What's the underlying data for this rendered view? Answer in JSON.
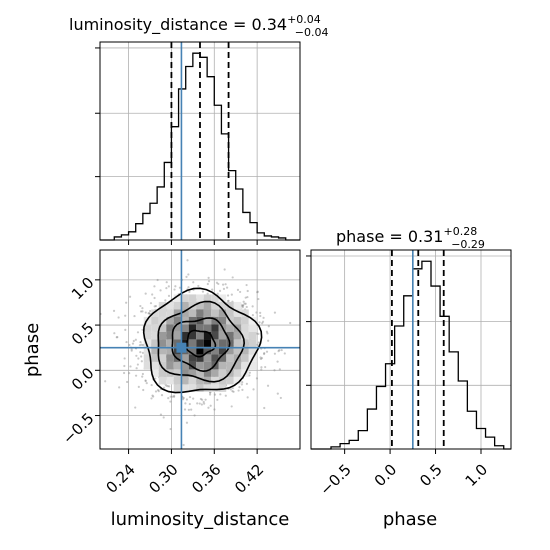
{
  "chart_data": {
    "type": "corner",
    "truth_color": "#4682b4",
    "panels": [
      {
        "name": "luminosity_distance-marginal",
        "type": "histogram",
        "title": "luminosity_distance = 0.34",
        "title_sup": "+0.04",
        "title_sub": "−0.04",
        "xlim": [
          0.2,
          0.48
        ],
        "bin_edges": [
          0.22,
          0.23,
          0.24,
          0.25,
          0.26,
          0.27,
          0.28,
          0.29,
          0.3,
          0.31,
          0.32,
          0.33,
          0.34,
          0.35,
          0.36,
          0.37,
          0.38,
          0.39,
          0.4,
          0.41,
          0.42,
          0.43,
          0.44,
          0.45,
          0.46
        ],
        "counts": [
          3,
          5,
          8,
          16,
          26,
          36,
          52,
          76,
          111,
          148,
          170,
          183,
          179,
          160,
          132,
          104,
          68,
          50,
          27,
          17,
          7,
          4,
          3,
          2
        ],
        "quantiles": [
          0.3,
          0.34,
          0.38
        ],
        "truth": 0.314
      },
      {
        "name": "phase-marginal",
        "type": "histogram",
        "title": "phase = 0.31",
        "title_sup": "+0.28",
        "title_sub": "−0.29",
        "xlim": [
          -0.87,
          1.33
        ],
        "bin_edges": [
          -0.65,
          -0.55,
          -0.45,
          -0.35,
          -0.25,
          -0.15,
          -0.05,
          0.05,
          0.15,
          0.25,
          0.35,
          0.45,
          0.55,
          0.65,
          0.75,
          0.85,
          0.95,
          1.05,
          1.15,
          1.25
        ],
        "counts": [
          2,
          5,
          8,
          17,
          37,
          58,
          79,
          114,
          142,
          167,
          174,
          151,
          123,
          90,
          63,
          35,
          19,
          11,
          3
        ],
        "quantiles": [
          0.02,
          0.31,
          0.59
        ],
        "truth": 0.25,
        "xticks": [
          -0.5,
          0.0,
          0.5,
          1.0
        ],
        "xticklabels": [
          "−0.5",
          "0.0",
          "0.5",
          "1.0"
        ],
        "xlabel": "phase"
      },
      {
        "name": "joint-2d",
        "type": "2d-density",
        "x_param": "luminosity_distance",
        "y_param": "phase",
        "xlim": [
          0.2,
          0.48
        ],
        "ylim": [
          -0.87,
          1.33
        ],
        "truth_point": [
          0.314,
          0.25
        ],
        "center": [
          0.34,
          0.3
        ],
        "spread": [
          0.04,
          0.28
        ],
        "contour_levels": [
          0.5,
          1.0,
          1.5,
          2.0
        ],
        "xticks": [
          0.24,
          0.3,
          0.36,
          0.42
        ],
        "xticklabels": [
          "0.24",
          "0.30",
          "0.36",
          "0.42"
        ],
        "yticks": [
          -0.5,
          0.0,
          0.5,
          1.0
        ],
        "yticklabels": [
          "−0.5",
          "0.0",
          "0.5",
          "1.0"
        ],
        "xlabel": "luminosity_distance",
        "ylabel": "phase"
      }
    ]
  }
}
